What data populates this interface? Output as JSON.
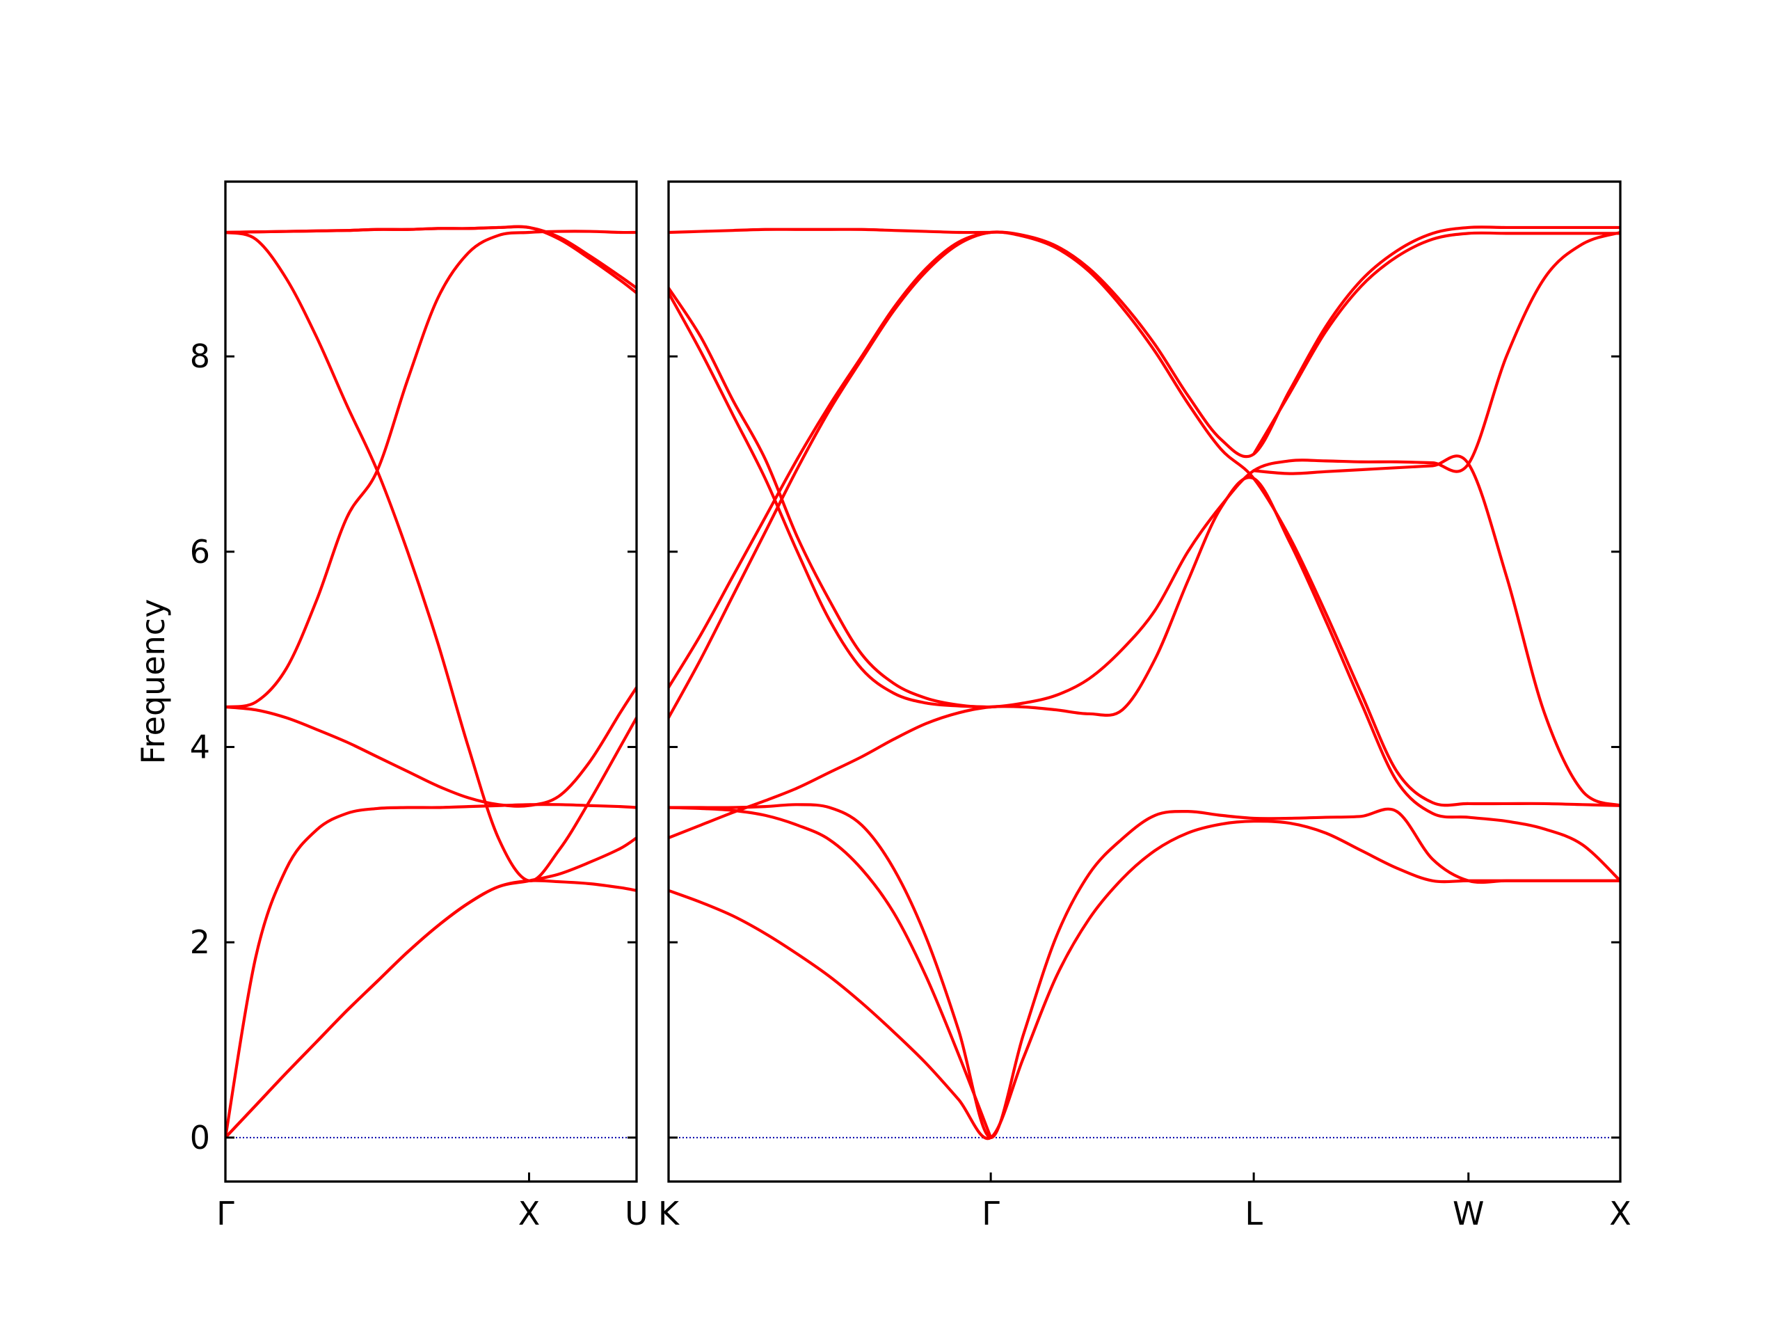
{
  "chart_data": [
    {
      "type": "line",
      "ylabel": "Frequency",
      "ytick_labels": true,
      "x": [
        0,
        0.1,
        0.2,
        0.3,
        0.4,
        0.5,
        0.6,
        0.7,
        0.8,
        0.9,
        1,
        1.1,
        1.2,
        1.3,
        1.354
      ],
      "xlim": [
        0,
        1.354
      ],
      "xticks": [
        {
          "value": 0,
          "label": "Γ"
        },
        {
          "value": 1,
          "label": "X"
        },
        {
          "value": 1.354,
          "label": "U"
        }
      ],
      "ylim": [
        -0.45,
        9.79
      ],
      "yticks": [
        0,
        2,
        4,
        6,
        8
      ],
      "reference_line": {
        "value": 0,
        "color": "#0000aa"
      },
      "series": [
        {
          "color": "#ff0000",
          "values": [
            0,
            0.33,
            0.66,
            0.98,
            1.3,
            1.6,
            1.9,
            2.17,
            2.4,
            2.57,
            2.63,
            2.62,
            2.6,
            2.56,
            2.53
          ]
        },
        {
          "color": "#ff0000",
          "values": [
            0,
            0.33,
            0.66,
            0.98,
            1.3,
            1.6,
            1.9,
            2.17,
            2.4,
            2.57,
            2.63,
            2.7,
            2.82,
            2.96,
            3.07
          ]
        },
        {
          "color": "#ff0000",
          "values": [
            0,
            1.85,
            2.75,
            3.15,
            3.32,
            3.37,
            3.38,
            3.38,
            3.39,
            3.4,
            3.41,
            3.41,
            3.4,
            3.39,
            3.38
          ]
        },
        {
          "color": "#ff0000",
          "values": [
            4.41,
            4.38,
            4.3,
            4.18,
            4.05,
            3.9,
            3.75,
            3.6,
            3.48,
            3.41,
            3.4,
            3.5,
            3.85,
            4.35,
            4.61
          ]
        },
        {
          "color": "#ff0000",
          "values": [
            4.41,
            4.46,
            4.8,
            5.5,
            6.35,
            6.83,
            7.76,
            8.6,
            9.06,
            9.24,
            9.27,
            9.28,
            9.28,
            9.27,
            9.27
          ]
        },
        {
          "color": "#ff0000",
          "values": [
            9.27,
            9.2,
            8.8,
            8.2,
            7.5,
            6.83,
            6.0,
            5.06,
            4.0,
            3.06,
            2.63,
            2.95,
            3.45,
            4.0,
            4.3
          ]
        },
        {
          "color": "#ff0000",
          "values": [
            9.27,
            9.275,
            9.28,
            9.285,
            9.29,
            9.3,
            9.3,
            9.31,
            9.31,
            9.32,
            9.32,
            9.2,
            9.0,
            8.78,
            8.65
          ]
        },
        {
          "color": "#ff0000",
          "values": [
            9.27,
            9.275,
            9.28,
            9.285,
            9.29,
            9.3,
            9.3,
            9.31,
            9.31,
            9.32,
            9.32,
            9.22,
            9.03,
            8.82,
            8.7
          ]
        }
      ]
    },
    {
      "type": "line",
      "ytick_labels": false,
      "x": [
        1.354,
        1.46,
        1.566,
        1.672,
        1.778,
        1.884,
        1.99,
        2.096,
        2.202,
        2.309,
        2.415,
        2.523,
        2.631,
        2.739,
        2.848,
        2.956,
        3.064,
        3.173,
        3.281,
        3.399,
        3.517,
        3.635,
        3.752,
        3.87,
        3.988,
        4.113,
        4.238,
        4.363,
        4.488
      ],
      "xlim": [
        1.354,
        4.488
      ],
      "xticks": [
        {
          "value": 1.354,
          "label": "K"
        },
        {
          "value": 2.415,
          "label": "Γ"
        },
        {
          "value": 3.281,
          "label": "L"
        },
        {
          "value": 3.988,
          "label": "W"
        },
        {
          "value": 4.488,
          "label": "X"
        }
      ],
      "ylim": [
        -0.45,
        9.79
      ],
      "yticks": [
        0,
        2,
        4,
        6,
        8
      ],
      "reference_line": {
        "value": 0,
        "color": "#0000aa"
      },
      "series": [
        {
          "color": "#ff0000",
          "values": [
            2.53,
            2.41,
            2.27,
            2.09,
            1.88,
            1.65,
            1.38,
            1.08,
            0.76,
            0.39,
            0,
            0.82,
            1.65,
            2.24,
            2.65,
            2.94,
            3.12,
            3.21,
            3.24,
            3.22,
            3.12,
            2.94,
            2.76,
            2.63,
            2.63,
            2.63,
            2.63,
            2.63,
            2.63
          ]
        },
        {
          "color": "#ff0000",
          "values": [
            3.38,
            3.38,
            3.38,
            3.39,
            3.41,
            3.38,
            3.2,
            2.75,
            2.05,
            1.1,
            0,
            1.06,
            2.06,
            2.7,
            3.06,
            3.3,
            3.34,
            3.3,
            3.27,
            3.27,
            3.28,
            3.29,
            3.34,
            2.85,
            2.63,
            2.63,
            2.63,
            2.63,
            2.63
          ]
        },
        {
          "color": "#ff0000",
          "values": [
            3.38,
            3.37,
            3.35,
            3.3,
            3.2,
            3.05,
            2.75,
            2.3,
            1.65,
            0.85,
            0,
            null,
            null,
            null,
            null,
            null,
            null,
            null,
            null,
            null,
            null,
            null,
            null,
            null,
            null,
            null,
            null,
            null,
            null
          ]
        },
        {
          "color": "#ff0000",
          "values": [
            3.07,
            3.2,
            3.33,
            3.45,
            3.58,
            3.74,
            3.9,
            4.08,
            4.24,
            4.35,
            4.41,
            4.41,
            4.38,
            4.34,
            4.38,
            4.9,
            5.7,
            6.45,
            6.75,
            6.1,
            5.3,
            4.45,
            3.65,
            3.32,
            3.28,
            3.24,
            3.16,
            3.0,
            2.63
          ]
        },
        {
          "color": "#ff0000",
          "values": [
            4.61,
            5.15,
            5.75,
            6.35,
            6.95,
            7.5,
            8.0,
            8.5,
            8.9,
            9.17,
            9.27,
            9.24,
            9.13,
            8.9,
            8.55,
            8.12,
            7.6,
            7.15,
            7.0,
            7.65,
            8.3,
            8.78,
            9.08,
            9.26,
            9.32,
            9.32,
            9.32,
            9.32,
            9.32
          ]
        },
        {
          "color": "#ff0000",
          "values": [
            4.3,
            4.9,
            5.55,
            6.2,
            6.85,
            7.45,
            7.97,
            8.47,
            8.87,
            9.15,
            9.27,
            9.23,
            9.11,
            8.87,
            8.5,
            8.05,
            7.52,
            7.05,
            6.75,
            6.15,
            5.38,
            4.55,
            3.75,
            3.43,
            3.42,
            3.42,
            3.42,
            3.41,
            3.4
          ]
        },
        {
          "color": "#ff0000",
          "values": [
            8.7,
            8.2,
            7.55,
            6.95,
            6.15,
            5.5,
            4.95,
            4.65,
            4.5,
            4.43,
            4.41,
            4.45,
            4.53,
            4.7,
            5.0,
            5.4,
            6.0,
            6.47,
            6.83,
            6.93,
            6.93,
            6.92,
            6.92,
            6.91,
            6.9,
            8.0,
            8.8,
            9.15,
            9.27
          ]
        },
        {
          "color": "#ff0000",
          "values": [
            8.65,
            8.05,
            7.4,
            6.75,
            6.0,
            5.3,
            4.8,
            4.55,
            4.45,
            4.42,
            4.41,
            null,
            null,
            null,
            null,
            null,
            null,
            null,
            6.83,
            6.8,
            6.82,
            6.84,
            6.86,
            6.88,
            6.9,
            5.75,
            4.35,
            3.55,
            3.4
          ]
        },
        {
          "color": "#ff0000",
          "values": [
            9.27,
            9.28,
            9.29,
            9.3,
            9.3,
            9.3,
            9.3,
            9.29,
            9.28,
            9.27,
            9.27,
            null,
            null,
            null,
            null,
            null,
            null,
            null,
            7.0,
            7.62,
            8.25,
            8.72,
            9.02,
            9.2,
            9.26,
            9.26,
            9.26,
            9.26,
            9.26
          ]
        }
      ]
    }
  ]
}
